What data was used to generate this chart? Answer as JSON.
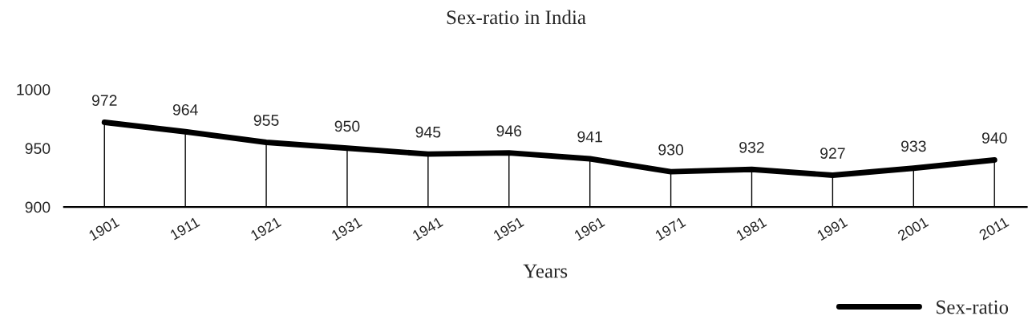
{
  "chart_data": {
    "type": "line",
    "title": "Sex-ratio in India",
    "xlabel": "Years",
    "categories": [
      "1901",
      "1911",
      "1921",
      "1931",
      "1941",
      "1951",
      "1961",
      "1971",
      "1981",
      "1991",
      "2001",
      "2011"
    ],
    "series": [
      {
        "name": "Sex-ratio",
        "color": "#000000",
        "values": [
          972,
          964,
          955,
          950,
          945,
          946,
          941,
          930,
          932,
          927,
          933,
          940
        ]
      }
    ],
    "ylim": [
      900,
      1000
    ],
    "yticks": [
      900,
      950,
      1000
    ],
    "data_labels": true,
    "legend": "bottom right",
    "grid": false,
    "marker": "none",
    "line_style": "solid"
  }
}
